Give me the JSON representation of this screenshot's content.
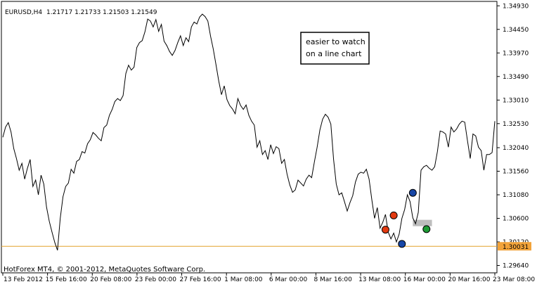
{
  "chart_data": {
    "type": "line",
    "symbol": "EURUSD,H4",
    "ohlc": "1.21717 1.21733 1.21503 1.21549",
    "note_line1": "easier to watch",
    "note_line2": "on a line chart",
    "footer": "HotForex MT4, © 2001-2012, MetaQuotes Software Corp.",
    "current_price": "1.30031",
    "ylim": [
      1.2949,
      1.3502
    ],
    "y_ticks": [
      "1.34930",
      "1.34450",
      "1.33970",
      "1.33490",
      "1.33010",
      "1.32530",
      "1.32040",
      "1.31560",
      "1.31080",
      "1.30600",
      "1.30120",
      "1.29640"
    ],
    "x_labels": [
      "13 Feb 2012",
      "15 Feb 16:00",
      "20 Feb 08:00",
      "23 Feb 00:00",
      "27 Feb 16:00",
      "1 Mar 08:00",
      "6 Mar 00:00",
      "8 Mar 16:00",
      "13 Mar 08:00",
      "16 Mar 00:00",
      "20 Mar 16:00",
      "23 Mar 08:00"
    ],
    "series": [
      {
        "values": [
          1.3225,
          1.3246,
          1.3255,
          1.3236,
          1.3202,
          1.3182,
          1.3158,
          1.3172,
          1.314,
          1.3162,
          1.318,
          1.3125,
          1.3138,
          1.3108,
          1.3148,
          1.313,
          1.3083,
          1.3054,
          1.3032,
          1.3011,
          1.2995,
          1.306,
          1.3104,
          1.3125,
          1.3132,
          1.316,
          1.3152,
          1.3176,
          1.318,
          1.3196,
          1.3193,
          1.3212,
          1.322,
          1.3235,
          1.323,
          1.3223,
          1.3218,
          1.3245,
          1.325,
          1.327,
          1.3282,
          1.3298,
          1.3304,
          1.33,
          1.331,
          1.3355,
          1.3372,
          1.3362,
          1.3368,
          1.3408,
          1.3418,
          1.3422,
          1.344,
          1.3466,
          1.3462,
          1.345,
          1.3465,
          1.3441,
          1.3455,
          1.3421,
          1.3412,
          1.34,
          1.3392,
          1.3402,
          1.3418,
          1.3432,
          1.3412,
          1.3428,
          1.342,
          1.345,
          1.346,
          1.3456,
          1.347,
          1.3476,
          1.3471,
          1.3462,
          1.3431,
          1.3405,
          1.3373,
          1.334,
          1.3312,
          1.333,
          1.3302,
          1.329,
          1.3283,
          1.3273,
          1.3304,
          1.329,
          1.3282,
          1.3291,
          1.327,
          1.3258,
          1.325,
          1.3205,
          1.3218,
          1.319,
          1.3198,
          1.318,
          1.321,
          1.3192,
          1.3206,
          1.3202,
          1.3172,
          1.318,
          1.315,
          1.3128,
          1.3113,
          1.3118,
          1.3138,
          1.3132,
          1.3126,
          1.314,
          1.3148,
          1.3143,
          1.3175,
          1.3205,
          1.324,
          1.3262,
          1.3272,
          1.3266,
          1.3252,
          1.318,
          1.313,
          1.3108,
          1.3112,
          1.3094,
          1.3075,
          1.3092,
          1.3106,
          1.3134,
          1.315,
          1.3154,
          1.3152,
          1.316,
          1.314,
          1.3098,
          1.306,
          1.3082,
          1.304,
          1.3052,
          1.3068,
          1.3032,
          1.3018,
          1.303,
          1.3012,
          1.3028,
          1.306,
          1.3078,
          1.3108,
          1.3094,
          1.3061,
          1.3049,
          1.3072,
          1.3158,
          1.3165,
          1.3168,
          1.3162,
          1.3158,
          1.3165,
          1.3196,
          1.3238,
          1.3236,
          1.3232,
          1.3205,
          1.3246,
          1.3236,
          1.3242,
          1.3252,
          1.3258,
          1.3256,
          1.3218,
          1.3182,
          1.3232,
          1.3228,
          1.3205,
          1.3198,
          1.3158,
          1.319,
          1.319,
          1.3194,
          1.3258
        ]
      }
    ],
    "markers": [
      {
        "kind": "red",
        "index": 140,
        "price": 1.3037
      },
      {
        "kind": "red",
        "index": 143,
        "price": 1.3066
      },
      {
        "kind": "blue",
        "index": 146,
        "price": 1.3008
      },
      {
        "kind": "blue",
        "index": 150,
        "price": 1.3112
      },
      {
        "kind": "green",
        "index": 155,
        "price": 1.3038
      }
    ],
    "colors": {
      "price_line": "#000000",
      "current_line": "#e4a12b",
      "current_tag_bg": "#f2a33a",
      "red_marker": "#e23a11",
      "blue_marker": "#1746a6",
      "green_marker": "#1e9c35",
      "highlight": "#bdbdbd"
    }
  }
}
